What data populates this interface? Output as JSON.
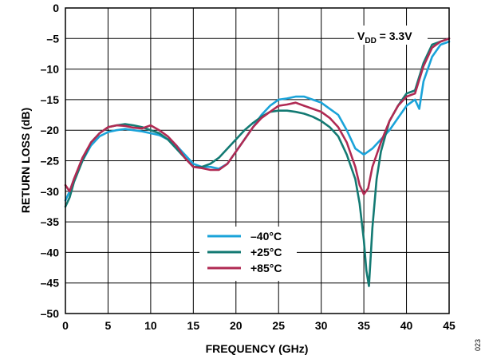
{
  "chart_data": {
    "type": "line",
    "xlabel": "FREQUENCY (GHz)",
    "ylabel": "RETURN LOSS (dB)",
    "xlim": [
      0,
      45
    ],
    "ylim": [
      -50,
      0
    ],
    "xticks": [
      0,
      5,
      10,
      15,
      20,
      25,
      30,
      35,
      40,
      45
    ],
    "yticks": [
      0,
      -5,
      -10,
      -15,
      -20,
      -25,
      -30,
      -35,
      -40,
      -45,
      -50
    ],
    "x_tick_labels": [
      "0",
      "5",
      "10",
      "15",
      "20",
      "25",
      "30",
      "35",
      "40",
      "45"
    ],
    "y_tick_labels": [
      "0",
      "–5",
      "–10",
      "–15",
      "–20",
      "–25",
      "–30",
      "–35",
      "–40",
      "–45",
      "–50"
    ],
    "grid": true,
    "legend_position": "lower-center",
    "annotation": {
      "main": "V",
      "sub": "DD",
      "tail": " = 3.3V"
    },
    "figure_id": "023",
    "series": [
      {
        "name": "–40°C",
        "color": "#1aa3d9",
        "x": [
          0,
          0.5,
          1,
          2,
          3,
          4,
          5,
          6,
          7,
          8,
          9,
          10,
          11,
          12,
          13,
          14,
          15,
          16,
          17,
          18,
          19,
          20,
          21,
          22,
          23,
          24,
          25,
          26,
          27,
          28,
          29,
          30,
          31,
          32,
          33,
          34,
          35,
          36,
          37,
          38,
          39,
          40,
          40.5,
          41,
          41.5,
          42,
          43,
          44,
          45
        ],
        "y": [
          -31.5,
          -30,
          -28,
          -25,
          -22.5,
          -21,
          -20.3,
          -20,
          -19.8,
          -20,
          -20.2,
          -20.5,
          -20.8,
          -21.5,
          -22.5,
          -24,
          -25.5,
          -26,
          -26,
          -26.3,
          -25.5,
          -23.5,
          -21.5,
          -19.5,
          -17.5,
          -16,
          -15,
          -14.8,
          -14.5,
          -14.5,
          -15,
          -15.5,
          -16.5,
          -17.5,
          -20,
          -23,
          -24,
          -23,
          -21.5,
          -20,
          -18,
          -16,
          -15.5,
          -15,
          -16.5,
          -12,
          -8,
          -6,
          -5.5
        ]
      },
      {
        "name": "+25°C",
        "color": "#137a73",
        "x": [
          0,
          0.5,
          1,
          2,
          3,
          4,
          5,
          6,
          7,
          8,
          9,
          10,
          11,
          12,
          13,
          14,
          15,
          16,
          17,
          18,
          19,
          20,
          21,
          22,
          23,
          24,
          25,
          26,
          27,
          28,
          29,
          30,
          31,
          32,
          33,
          34,
          34.5,
          35,
          35.3,
          35.6,
          36,
          36.5,
          37,
          38,
          39,
          40,
          41,
          42,
          43,
          44,
          45
        ],
        "y": [
          -32.5,
          -31,
          -28.5,
          -25,
          -22,
          -20.5,
          -19.5,
          -19.2,
          -19,
          -19.2,
          -19.5,
          -20,
          -20.5,
          -21.5,
          -23,
          -24.5,
          -26,
          -26,
          -25.5,
          -24.5,
          -23,
          -21.5,
          -20,
          -18.8,
          -17.8,
          -17,
          -16.8,
          -16.8,
          -17,
          -17.3,
          -17.8,
          -18.5,
          -19.5,
          -21,
          -24,
          -28,
          -32,
          -38,
          -43,
          -45.5,
          -36,
          -28,
          -23.5,
          -18.5,
          -16,
          -14,
          -13.5,
          -9,
          -6,
          -5.5,
          -5
        ]
      },
      {
        "name": "+85°C",
        "color": "#b02a53",
        "x": [
          0,
          0.5,
          1,
          2,
          3,
          4,
          5,
          6,
          7,
          8,
          9,
          10,
          11,
          12,
          13,
          14,
          15,
          16,
          17,
          18,
          19,
          20,
          21,
          22,
          23,
          24,
          25,
          26,
          27,
          28,
          29,
          30,
          31,
          32,
          33,
          34,
          34.5,
          35,
          35.5,
          36,
          37,
          38,
          39,
          40,
          41,
          42,
          43,
          44,
          45
        ],
        "y": [
          -29,
          -30,
          -28,
          -24.5,
          -22,
          -20.5,
          -19.5,
          -19.2,
          -19.3,
          -19.6,
          -19.7,
          -19.2,
          -20,
          -21,
          -22.5,
          -24.5,
          -26,
          -26.2,
          -26.5,
          -26.5,
          -25.5,
          -23.5,
          -21.5,
          -19.5,
          -18,
          -17,
          -16,
          -15.8,
          -15.5,
          -16,
          -16.5,
          -17,
          -18,
          -19.5,
          -22,
          -26,
          -29,
          -30.5,
          -29.5,
          -26,
          -22,
          -18.5,
          -16,
          -14.5,
          -14,
          -9.5,
          -6.5,
          -5.5,
          -5
        ]
      }
    ]
  }
}
